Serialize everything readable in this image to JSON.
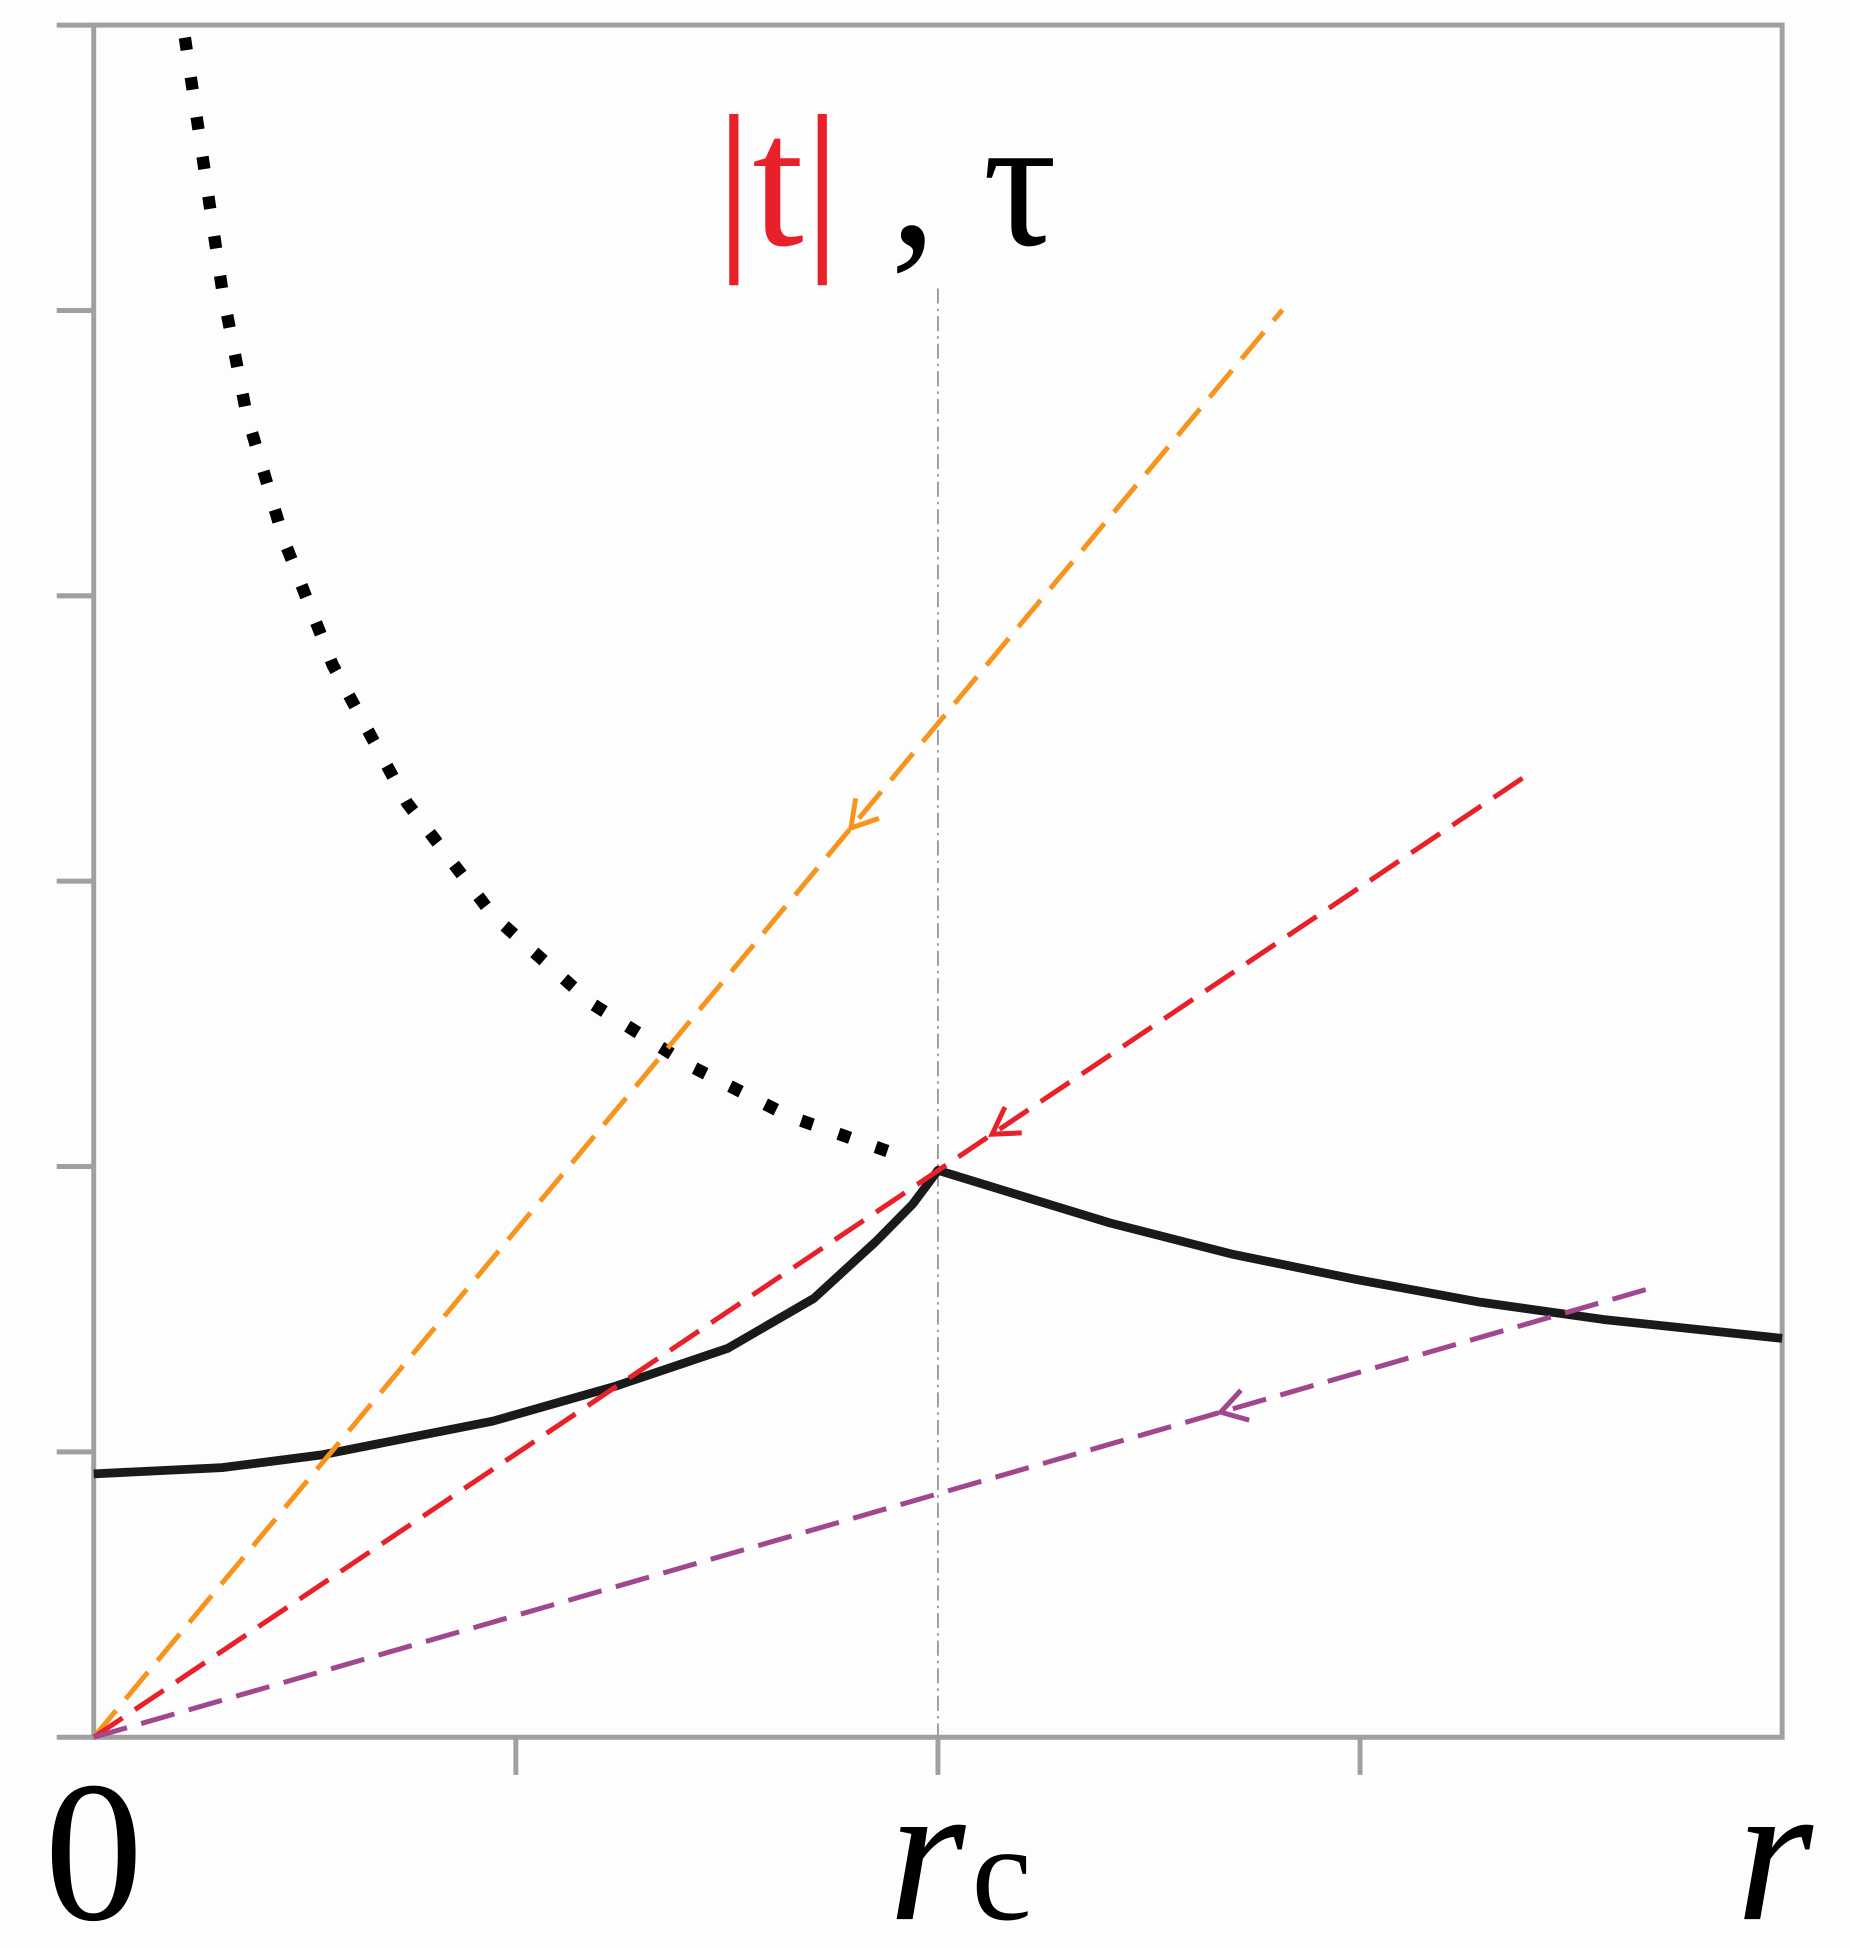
{
  "chart_data": {
    "type": "line",
    "title": [
      {
        "text": "|t|",
        "color": "#e8202a"
      },
      {
        "text": ", τ",
        "color": "#000000"
      }
    ],
    "xlim": [
      0,
      2
    ],
    "ylim": [
      0,
      6
    ],
    "xticks": [
      {
        "value": 0,
        "label": "0"
      },
      {
        "value": 1,
        "label": "r",
        "subscript": "c"
      },
      {
        "value": 2,
        "label": "r"
      }
    ],
    "xminorticks": [
      0.5,
      1.5
    ],
    "yticks": [
      0,
      1,
      2,
      3,
      4,
      5,
      6
    ],
    "axis_color": "#a0a0a0",
    "reference_line_x": 1,
    "series": [
      {
        "style": "solid",
        "color": "#1a1a1a",
        "x": [
          0,
          0.152,
          0.269,
          0.473,
          0.619,
          0.751,
          0.853,
          0.926,
          0.97,
          1.0,
          1.058,
          1.204,
          1.35,
          1.496,
          1.642,
          1.788,
          2.0
        ],
        "values": [
          0.923,
          0.945,
          0.989,
          1.108,
          1.231,
          1.363,
          1.538,
          1.736,
          1.868,
          1.987,
          1.934,
          1.802,
          1.692,
          1.604,
          1.525,
          1.464,
          1.398
        ]
      },
      {
        "style": "dotted",
        "color": "#000000",
        "x": [
          0.108,
          0.13,
          0.152,
          0.181,
          0.225,
          0.283,
          0.371,
          0.473,
          0.59,
          0.707,
          0.824,
          0.941
        ],
        "values": [
          5.956,
          5.516,
          5.077,
          4.637,
          4.198,
          3.758,
          3.275,
          2.879,
          2.571,
          2.352,
          2.176,
          2.053
        ]
      },
      {
        "style": "dashed",
        "color": "#f7941d",
        "x": [
          0,
          1.408
        ],
        "values": [
          0,
          5.002
        ]
      },
      {
        "style": "dashed",
        "color": "#e8202a",
        "x": [
          0,
          1.7
        ],
        "values": [
          0,
          3.376
        ]
      },
      {
        "style": "dashed",
        "color": "#a0478e",
        "x": [
          0,
          1.854
        ],
        "values": [
          0,
          1.582
        ]
      }
    ]
  }
}
